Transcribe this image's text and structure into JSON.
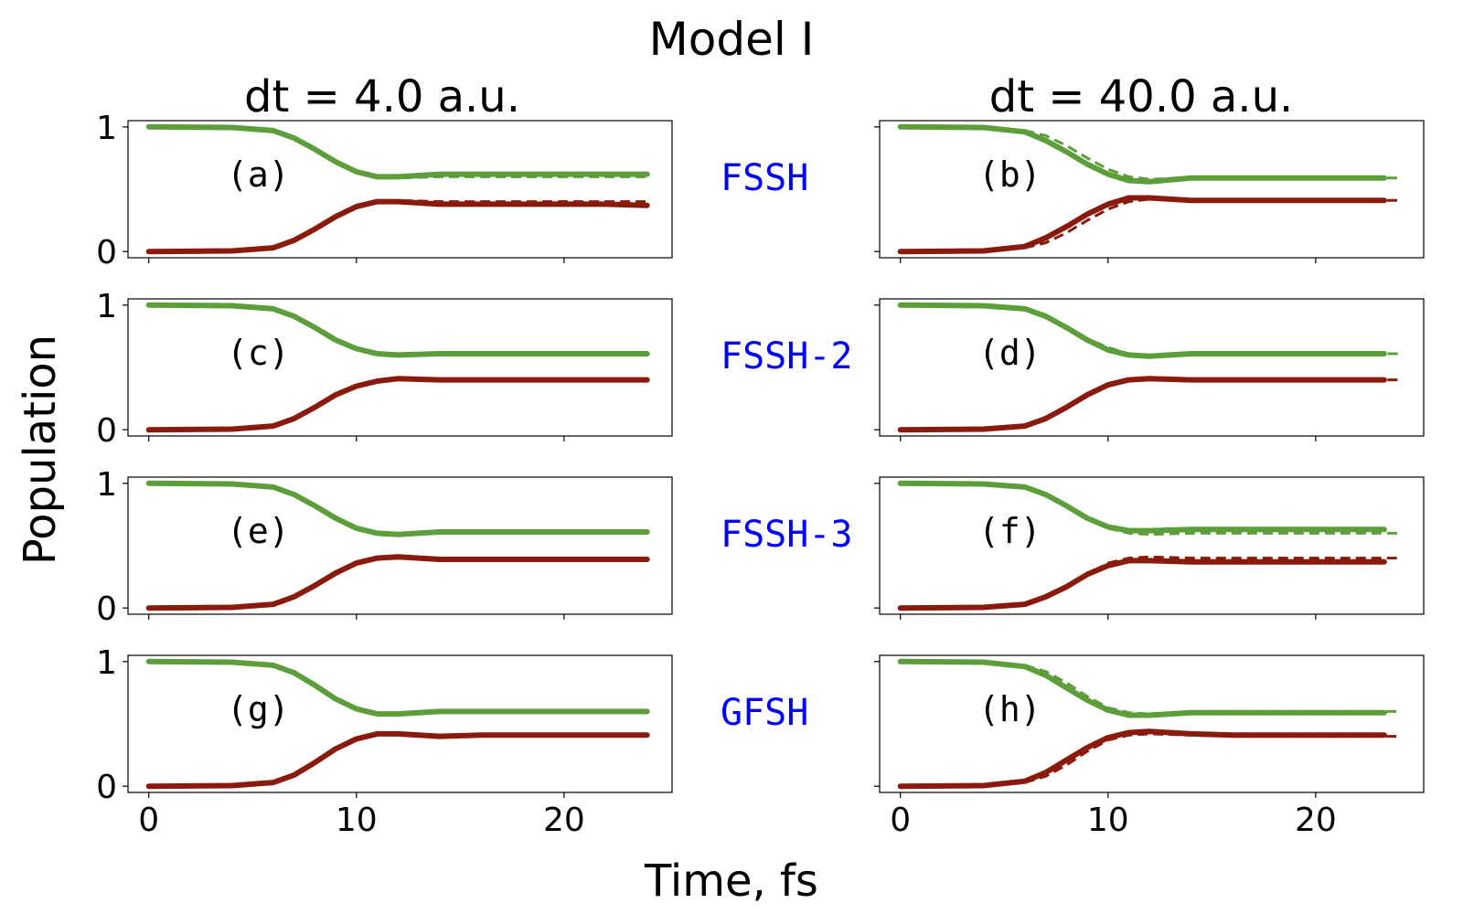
{
  "figure": {
    "title": "Model I",
    "xlabel": "Time, fs",
    "ylabel": "Population",
    "column_titles": [
      "dt = 4.0 a.u.",
      "dt = 40.0 a.u."
    ],
    "row_labels": [
      "FSSH",
      "FSSH-2",
      "FSSH-3",
      "GFSH"
    ],
    "colors": {
      "upper_state": "#5c9e3a",
      "lower_state": "#8a1a0c",
      "method_label": "#0000ff",
      "axes": "#000000"
    }
  },
  "chart_data": [
    {
      "panel": "(a)",
      "type": "line",
      "method": "FSSH",
      "dt": "dt = 4.0 a.u.",
      "xlim": [
        -1,
        25.2
      ],
      "ylim": [
        -0.05,
        1.05
      ],
      "xticks": [
        0,
        10,
        20
      ],
      "yticks": [
        0,
        1
      ],
      "show_xticklabels": false,
      "show_yticklabels": true,
      "x": [
        0,
        4,
        6,
        7,
        8,
        9,
        10,
        11,
        12,
        14,
        16,
        18,
        20,
        22,
        24
      ],
      "series": [
        {
          "values": [
            1.0,
            0.995,
            0.97,
            0.91,
            0.82,
            0.72,
            0.64,
            0.6,
            0.6,
            0.62,
            0.62,
            0.62,
            0.62,
            0.62,
            0.62
          ]
        },
        {
          "values": [
            1.0,
            0.995,
            0.97,
            0.91,
            0.82,
            0.72,
            0.64,
            0.6,
            0.59,
            0.6,
            0.6,
            0.6,
            0.6,
            0.6,
            0.6
          ],
          "dashed": true
        },
        {
          "values": [
            0.0,
            0.005,
            0.03,
            0.09,
            0.18,
            0.28,
            0.36,
            0.4,
            0.4,
            0.38,
            0.38,
            0.38,
            0.38,
            0.38,
            0.37
          ]
        },
        {
          "values": [
            0.0,
            0.005,
            0.03,
            0.09,
            0.18,
            0.28,
            0.36,
            0.4,
            0.41,
            0.4,
            0.4,
            0.4,
            0.4,
            0.4,
            0.4
          ],
          "dashed": true
        }
      ]
    },
    {
      "panel": "(b)",
      "type": "line",
      "method": "FSSH",
      "dt": "dt = 40.0 a.u.",
      "xlim": [
        -1,
        25.2
      ],
      "ylim": [
        -0.05,
        1.05
      ],
      "xticks": [
        0,
        10,
        20
      ],
      "yticks": [
        0,
        1
      ],
      "show_xticklabels": false,
      "show_yticklabels": false,
      "x": [
        0,
        4,
        6,
        7,
        8,
        9,
        10,
        11,
        12,
        14,
        16,
        18,
        20,
        22,
        23.3,
        24
      ],
      "series": [
        {
          "values": [
            1.0,
            0.995,
            0.96,
            0.89,
            0.8,
            0.7,
            0.62,
            0.57,
            0.56,
            0.59,
            0.59,
            0.59,
            0.59,
            0.59,
            0.59,
            null
          ]
        },
        {
          "values": [
            1.0,
            0.995,
            0.97,
            0.93,
            0.85,
            0.75,
            0.66,
            0.6,
            0.58,
            0.59,
            0.59,
            0.59,
            0.59,
            0.59,
            0.59,
            0.59
          ],
          "dashed": true
        },
        {
          "values": [
            0.0,
            0.005,
            0.04,
            0.11,
            0.2,
            0.3,
            0.38,
            0.43,
            0.43,
            0.41,
            0.41,
            0.41,
            0.41,
            0.41,
            0.41,
            null
          ]
        },
        {
          "values": [
            0.0,
            0.005,
            0.03,
            0.07,
            0.15,
            0.25,
            0.34,
            0.4,
            0.42,
            0.41,
            0.41,
            0.41,
            0.41,
            0.41,
            0.41,
            0.41
          ],
          "dashed": true
        }
      ]
    },
    {
      "panel": "(c)",
      "type": "line",
      "method": "FSSH-2",
      "dt": "dt = 4.0 a.u.",
      "xlim": [
        -1,
        25.2
      ],
      "ylim": [
        -0.05,
        1.05
      ],
      "xticks": [
        0,
        10,
        20
      ],
      "yticks": [
        0,
        1
      ],
      "show_xticklabels": false,
      "show_yticklabels": true,
      "x": [
        0,
        4,
        6,
        7,
        8,
        9,
        10,
        11,
        12,
        14,
        16,
        18,
        20,
        22,
        24
      ],
      "series": [
        {
          "values": [
            1.0,
            0.995,
            0.97,
            0.91,
            0.82,
            0.72,
            0.65,
            0.61,
            0.6,
            0.61,
            0.61,
            0.61,
            0.61,
            0.61,
            0.61
          ]
        },
        {
          "values": [
            1.0,
            0.995,
            0.97,
            0.91,
            0.82,
            0.72,
            0.65,
            0.61,
            0.6,
            0.61,
            0.61,
            0.61,
            0.61,
            0.61,
            0.61
          ],
          "dashed": true
        },
        {
          "values": [
            0.0,
            0.005,
            0.03,
            0.09,
            0.18,
            0.28,
            0.35,
            0.39,
            0.41,
            0.4,
            0.4,
            0.4,
            0.4,
            0.4,
            0.4
          ]
        },
        {
          "values": [
            0.0,
            0.005,
            0.03,
            0.09,
            0.18,
            0.28,
            0.35,
            0.39,
            0.41,
            0.4,
            0.4,
            0.4,
            0.4,
            0.4,
            0.4
          ],
          "dashed": true
        }
      ]
    },
    {
      "panel": "(d)",
      "type": "line",
      "method": "FSSH-2",
      "dt": "dt = 40.0 a.u.",
      "xlim": [
        -1,
        25.2
      ],
      "ylim": [
        -0.05,
        1.05
      ],
      "xticks": [
        0,
        10,
        20
      ],
      "yticks": [
        0,
        1
      ],
      "show_xticklabels": false,
      "show_yticklabels": false,
      "x": [
        0,
        4,
        6,
        7,
        8,
        9,
        10,
        11,
        12,
        14,
        16,
        18,
        20,
        22,
        23.3,
        24
      ],
      "series": [
        {
          "values": [
            1.0,
            0.995,
            0.97,
            0.91,
            0.82,
            0.72,
            0.64,
            0.6,
            0.59,
            0.61,
            0.61,
            0.61,
            0.61,
            0.61,
            0.61,
            null
          ]
        },
        {
          "values": [
            1.0,
            0.995,
            0.97,
            0.92,
            0.83,
            0.73,
            0.66,
            0.61,
            0.6,
            0.61,
            0.61,
            0.61,
            0.61,
            0.61,
            0.61,
            0.61
          ],
          "dashed": true
        },
        {
          "values": [
            0.0,
            0.005,
            0.03,
            0.09,
            0.18,
            0.28,
            0.36,
            0.4,
            0.41,
            0.4,
            0.4,
            0.4,
            0.4,
            0.4,
            0.4,
            null
          ]
        },
        {
          "values": [
            0.0,
            0.005,
            0.03,
            0.08,
            0.17,
            0.27,
            0.35,
            0.39,
            0.41,
            0.4,
            0.4,
            0.4,
            0.4,
            0.4,
            0.4,
            0.4
          ],
          "dashed": true
        }
      ]
    },
    {
      "panel": "(e)",
      "type": "line",
      "method": "FSSH-3",
      "dt": "dt = 4.0 a.u.",
      "xlim": [
        -1,
        25.2
      ],
      "ylim": [
        -0.05,
        1.05
      ],
      "xticks": [
        0,
        10,
        20
      ],
      "yticks": [
        0,
        1
      ],
      "show_xticklabels": false,
      "show_yticklabels": true,
      "x": [
        0,
        4,
        6,
        7,
        8,
        9,
        10,
        11,
        12,
        14,
        16,
        18,
        20,
        22,
        24
      ],
      "series": [
        {
          "values": [
            1.0,
            0.995,
            0.97,
            0.91,
            0.82,
            0.72,
            0.64,
            0.6,
            0.59,
            0.61,
            0.61,
            0.61,
            0.61,
            0.61,
            0.61
          ]
        },
        {
          "values": [
            1.0,
            0.995,
            0.97,
            0.91,
            0.82,
            0.72,
            0.64,
            0.6,
            0.59,
            0.61,
            0.61,
            0.61,
            0.61,
            0.61,
            0.61
          ],
          "dashed": true
        },
        {
          "values": [
            0.0,
            0.005,
            0.03,
            0.09,
            0.18,
            0.28,
            0.36,
            0.4,
            0.41,
            0.39,
            0.39,
            0.39,
            0.39,
            0.39,
            0.39
          ]
        },
        {
          "values": [
            0.0,
            0.005,
            0.03,
            0.09,
            0.18,
            0.28,
            0.36,
            0.4,
            0.41,
            0.39,
            0.39,
            0.39,
            0.39,
            0.39,
            0.39
          ],
          "dashed": true
        }
      ]
    },
    {
      "panel": "(f)",
      "type": "line",
      "method": "FSSH-3",
      "dt": "dt = 40.0 a.u.",
      "xlim": [
        -1,
        25.2
      ],
      "ylim": [
        -0.05,
        1.05
      ],
      "xticks": [
        0,
        10,
        20
      ],
      "yticks": [
        0,
        1
      ],
      "show_xticklabels": false,
      "show_yticklabels": false,
      "x": [
        0,
        4,
        6,
        7,
        8,
        9,
        10,
        11,
        12,
        14,
        16,
        18,
        20,
        22,
        23.3,
        24
      ],
      "series": [
        {
          "values": [
            1.0,
            0.995,
            0.97,
            0.91,
            0.82,
            0.72,
            0.65,
            0.62,
            0.62,
            0.63,
            0.63,
            0.63,
            0.63,
            0.63,
            0.63,
            null
          ]
        },
        {
          "values": [
            1.0,
            0.995,
            0.97,
            0.92,
            0.83,
            0.73,
            0.64,
            0.6,
            0.59,
            0.6,
            0.6,
            0.6,
            0.6,
            0.6,
            0.6,
            0.6
          ],
          "dashed": true
        },
        {
          "values": [
            0.0,
            0.005,
            0.03,
            0.09,
            0.17,
            0.27,
            0.34,
            0.38,
            0.38,
            0.37,
            0.37,
            0.37,
            0.37,
            0.37,
            0.37,
            null
          ]
        },
        {
          "values": [
            0.0,
            0.005,
            0.03,
            0.08,
            0.16,
            0.27,
            0.36,
            0.4,
            0.41,
            0.4,
            0.4,
            0.4,
            0.4,
            0.4,
            0.4,
            0.4
          ],
          "dashed": true
        }
      ]
    },
    {
      "panel": "(g)",
      "type": "line",
      "method": "GFSH",
      "dt": "dt = 4.0 a.u.",
      "xlim": [
        -1,
        25.2
      ],
      "ylim": [
        -0.05,
        1.05
      ],
      "xticks": [
        0,
        10,
        20
      ],
      "yticks": [
        0,
        1
      ],
      "show_xticklabels": true,
      "show_yticklabels": true,
      "x": [
        0,
        4,
        6,
        7,
        8,
        9,
        10,
        11,
        12,
        14,
        16,
        18,
        20,
        22,
        24
      ],
      "series": [
        {
          "values": [
            1.0,
            0.995,
            0.97,
            0.91,
            0.81,
            0.7,
            0.62,
            0.58,
            0.58,
            0.6,
            0.6,
            0.6,
            0.6,
            0.6,
            0.6
          ]
        },
        {
          "values": [
            1.0,
            0.995,
            0.97,
            0.91,
            0.82,
            0.71,
            0.63,
            0.59,
            0.58,
            0.6,
            0.6,
            0.6,
            0.6,
            0.6,
            0.6
          ],
          "dashed": true
        },
        {
          "values": [
            0.0,
            0.005,
            0.03,
            0.09,
            0.19,
            0.3,
            0.38,
            0.42,
            0.42,
            0.4,
            0.41,
            0.41,
            0.41,
            0.41,
            0.41
          ]
        },
        {
          "values": [
            0.0,
            0.005,
            0.03,
            0.09,
            0.18,
            0.29,
            0.37,
            0.41,
            0.42,
            0.4,
            0.41,
            0.41,
            0.41,
            0.41,
            0.41
          ],
          "dashed": true
        }
      ]
    },
    {
      "panel": "(h)",
      "type": "line",
      "method": "GFSH",
      "dt": "dt = 40.0 a.u.",
      "xlim": [
        -1,
        25.2
      ],
      "ylim": [
        -0.05,
        1.05
      ],
      "xticks": [
        0,
        10,
        20
      ],
      "yticks": [
        0,
        1
      ],
      "show_xticklabels": true,
      "show_yticklabels": false,
      "x": [
        0,
        4,
        6,
        7,
        8,
        9,
        10,
        11,
        12,
        14,
        16,
        18,
        20,
        22,
        23.3,
        24
      ],
      "series": [
        {
          "values": [
            1.0,
            0.995,
            0.96,
            0.89,
            0.79,
            0.69,
            0.61,
            0.57,
            0.57,
            0.59,
            0.59,
            0.59,
            0.59,
            0.59,
            0.59,
            null
          ]
        },
        {
          "values": [
            1.0,
            0.995,
            0.97,
            0.92,
            0.83,
            0.72,
            0.63,
            0.59,
            0.58,
            0.6,
            0.6,
            0.6,
            0.6,
            0.6,
            0.6,
            0.6
          ],
          "dashed": true
        },
        {
          "values": [
            0.0,
            0.005,
            0.04,
            0.11,
            0.21,
            0.31,
            0.39,
            0.43,
            0.44,
            0.42,
            0.41,
            0.41,
            0.41,
            0.41,
            0.41,
            null
          ]
        },
        {
          "values": [
            0.0,
            0.005,
            0.03,
            0.08,
            0.17,
            0.28,
            0.37,
            0.41,
            0.42,
            0.41,
            0.4,
            0.4,
            0.4,
            0.4,
            0.4,
            0.4
          ],
          "dashed": true
        }
      ]
    }
  ]
}
